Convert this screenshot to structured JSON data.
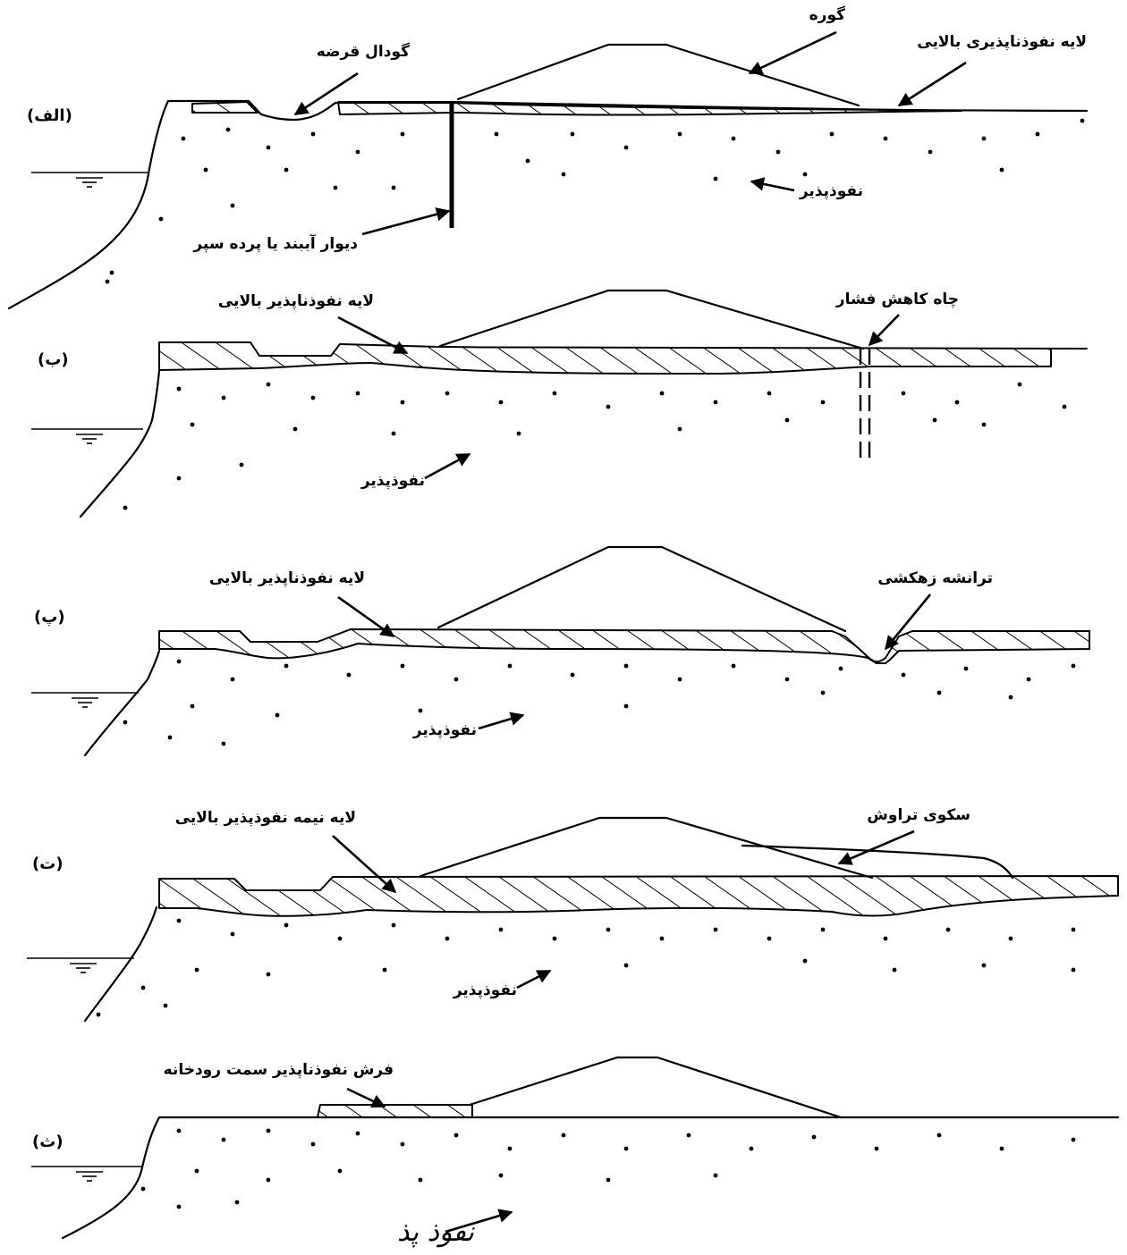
{
  "panels": [
    {
      "letter": "(الف)",
      "labels": {
        "borrow_pit": "گودال قرضه",
        "levee": "گوره",
        "impervious_top": "لایه نفوذناپذیری بالایی",
        "pervious": "نفوذپذیر",
        "cutoff_wall": "دیوار آببند یا پرده سپر"
      }
    },
    {
      "letter": "(ب)",
      "labels": {
        "impervious_top": "لایه نفوذناپذیر بالایی",
        "relief_well": "چاه کاهش فشار",
        "pervious": "نفوذپذیر"
      }
    },
    {
      "letter": "(پ)",
      "labels": {
        "impervious_top": "لایه نفوذناپذیر بالایی",
        "drainage_trench": "ترانشه زهکشی",
        "pervious": "نفوذپذیر"
      }
    },
    {
      "letter": "(ت)",
      "labels": {
        "semi_pervious_top": "لایه نیمه نفوذپذیر بالایی",
        "seepage_berm": "سکوی تراوش",
        "pervious": "نفوذپذیر"
      }
    },
    {
      "letter": "(ث)",
      "labels": {
        "riverside_blanket": "فرش نفوذناپذیر سمت رودخانه",
        "pervious_handwritten": "نفوذ پذ"
      }
    }
  ]
}
